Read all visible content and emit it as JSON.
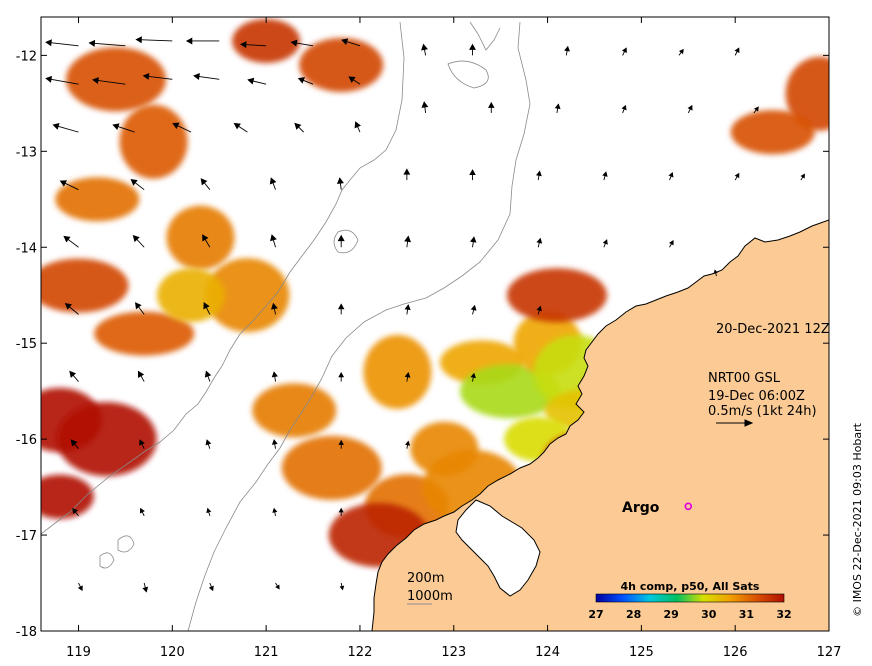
{
  "map": {
    "lon_range": [
      118.6,
      127.0
    ],
    "lat_range": [
      -18.0,
      -11.6
    ],
    "x_ticks": [
      119,
      120,
      121,
      122,
      123,
      124,
      125,
      126,
      127
    ],
    "y_ticks": [
      -12,
      -13,
      -14,
      -15,
      -16,
      -17,
      -18
    ],
    "colors": {
      "land": "#FCCB95",
      "ocean": "#ffffff",
      "bathymetry": "#8a8a8a",
      "coast": "#000000",
      "argo_marker": "#E000E0"
    }
  },
  "annotations": {
    "date_label": "20-Dec-2021 12Z",
    "current_source": "NRT00 GSL",
    "current_time": "19-Dec 06:00Z",
    "scale_label": "0.5m/s (1kt 24h)",
    "argo_label": "Argo",
    "contour_200": "200m",
    "contour_1000": "1000m",
    "credit": "© IMOS 22-Dec-2021 09:03 Hobart"
  },
  "colorbar": {
    "title": "4h comp, p50, All Sats",
    "ticks": [
      "27",
      "28",
      "29",
      "30",
      "31",
      "32"
    ],
    "range": [
      27,
      32
    ],
    "colors": [
      "#0000A0",
      "#0050FF",
      "#00C8E0",
      "#00C060",
      "#D8E000",
      "#F0A000",
      "#D85000",
      "#B01000"
    ]
  },
  "chart_data": {
    "type": "heatmap",
    "title": "",
    "xlabel": "",
    "ylabel": "",
    "xlim": [
      118.6,
      127.0
    ],
    "ylim": [
      -18.0,
      -11.6
    ],
    "value_unit": "°C",
    "argo": {
      "lon": 125.5,
      "lat": -16.7
    },
    "sst_patches": [
      {
        "lon": 121.0,
        "lat": -11.85,
        "value": 31.6
      },
      {
        "lon": 121.8,
        "lat": -12.1,
        "value": 31.4
      },
      {
        "lon": 119.4,
        "lat": -12.25,
        "value": 31.3
      },
      {
        "lon": 119.8,
        "lat": -12.9,
        "value": 31.2
      },
      {
        "lon": 119.2,
        "lat": -13.5,
        "value": 31.0
      },
      {
        "lon": 119.0,
        "lat": -14.4,
        "value": 31.4
      },
      {
        "lon": 120.3,
        "lat": -13.9,
        "value": 30.9
      },
      {
        "lon": 120.8,
        "lat": -14.5,
        "value": 30.8
      },
      {
        "lon": 119.7,
        "lat": -14.9,
        "value": 31.2
      },
      {
        "lon": 120.2,
        "lat": -14.5,
        "value": 30.4
      },
      {
        "lon": 118.8,
        "lat": -15.8,
        "value": 32.0
      },
      {
        "lon": 119.3,
        "lat": -16.0,
        "value": 32.0
      },
      {
        "lon": 118.8,
        "lat": -16.6,
        "value": 32.0
      },
      {
        "lon": 121.3,
        "lat": -15.7,
        "value": 30.9
      },
      {
        "lon": 121.7,
        "lat": -16.3,
        "value": 31.0
      },
      {
        "lon": 122.4,
        "lat": -15.3,
        "value": 30.7
      },
      {
        "lon": 123.3,
        "lat": -15.2,
        "value": 30.5
      },
      {
        "lon": 123.6,
        "lat": -15.5,
        "value": 29.7
      },
      {
        "lon": 124.0,
        "lat": -15.0,
        "value": 30.5
      },
      {
        "lon": 124.3,
        "lat": -15.3,
        "value": 29.8
      },
      {
        "lon": 124.5,
        "lat": -15.7,
        "value": 30.2
      },
      {
        "lon": 122.9,
        "lat": -16.1,
        "value": 30.8
      },
      {
        "lon": 122.5,
        "lat": -16.7,
        "value": 31.0
      },
      {
        "lon": 123.2,
        "lat": -16.5,
        "value": 30.8
      },
      {
        "lon": 123.9,
        "lat": -16.0,
        "value": 29.9
      },
      {
        "lon": 124.4,
        "lat": -16.2,
        "value": 31.3
      },
      {
        "lon": 122.2,
        "lat": -17.0,
        "value": 31.8
      },
      {
        "lon": 126.9,
        "lat": -12.4,
        "value": 31.4
      },
      {
        "lon": 126.4,
        "lat": -12.8,
        "value": 31.3
      },
      {
        "lon": 124.1,
        "lat": -14.5,
        "value": 31.6
      }
    ],
    "current_vectors": [
      {
        "lon": 119.0,
        "lat": -11.9,
        "u": -0.45,
        "v": 0.05
      },
      {
        "lon": 119.5,
        "lat": -11.9,
        "u": -0.5,
        "v": 0.04
      },
      {
        "lon": 120.0,
        "lat": -11.85,
        "u": -0.5,
        "v": 0.02
      },
      {
        "lon": 120.5,
        "lat": -11.85,
        "u": -0.45,
        "v": 0.0
      },
      {
        "lon": 121.0,
        "lat": -11.9,
        "u": -0.35,
        "v": 0.02
      },
      {
        "lon": 121.5,
        "lat": -11.9,
        "u": -0.3,
        "v": 0.05
      },
      {
        "lon": 122.0,
        "lat": -11.9,
        "u": -0.25,
        "v": 0.08
      },
      {
        "lon": 119.0,
        "lat": -12.3,
        "u": -0.45,
        "v": 0.08
      },
      {
        "lon": 119.5,
        "lat": -12.3,
        "u": -0.45,
        "v": 0.06
      },
      {
        "lon": 120.0,
        "lat": -12.25,
        "u": -0.4,
        "v": 0.05
      },
      {
        "lon": 120.5,
        "lat": -12.25,
        "u": -0.35,
        "v": 0.05
      },
      {
        "lon": 121.0,
        "lat": -12.3,
        "u": -0.25,
        "v": 0.06
      },
      {
        "lon": 121.5,
        "lat": -12.3,
        "u": -0.2,
        "v": 0.08
      },
      {
        "lon": 122.0,
        "lat": -12.3,
        "u": -0.15,
        "v": 0.1
      },
      {
        "lon": 122.7,
        "lat": -12.0,
        "u": -0.03,
        "v": 0.15
      },
      {
        "lon": 123.2,
        "lat": -12.0,
        "u": 0.0,
        "v": 0.15
      },
      {
        "lon": 124.2,
        "lat": -12.0,
        "u": 0.02,
        "v": 0.12
      },
      {
        "lon": 124.8,
        "lat": -12.0,
        "u": 0.05,
        "v": 0.1
      },
      {
        "lon": 125.4,
        "lat": -12.0,
        "u": 0.06,
        "v": 0.08
      },
      {
        "lon": 126.0,
        "lat": -12.0,
        "u": 0.05,
        "v": 0.1
      },
      {
        "lon": 119.0,
        "lat": -12.8,
        "u": -0.35,
        "v": 0.1
      },
      {
        "lon": 119.6,
        "lat": -12.8,
        "u": -0.3,
        "v": 0.1
      },
      {
        "lon": 120.2,
        "lat": -12.8,
        "u": -0.25,
        "v": 0.12
      },
      {
        "lon": 120.8,
        "lat": -12.8,
        "u": -0.18,
        "v": 0.12
      },
      {
        "lon": 121.4,
        "lat": -12.8,
        "u": -0.12,
        "v": 0.12
      },
      {
        "lon": 122.0,
        "lat": -12.8,
        "u": -0.06,
        "v": 0.14
      },
      {
        "lon": 122.7,
        "lat": -12.6,
        "u": -0.02,
        "v": 0.15
      },
      {
        "lon": 123.4,
        "lat": -12.6,
        "u": 0.0,
        "v": 0.14
      },
      {
        "lon": 124.1,
        "lat": -12.6,
        "u": 0.02,
        "v": 0.12
      },
      {
        "lon": 124.8,
        "lat": -12.6,
        "u": 0.04,
        "v": 0.1
      },
      {
        "lon": 125.5,
        "lat": -12.6,
        "u": 0.05,
        "v": 0.1
      },
      {
        "lon": 126.2,
        "lat": -12.6,
        "u": 0.06,
        "v": 0.08
      },
      {
        "lon": 119.0,
        "lat": -13.4,
        "u": -0.25,
        "v": 0.12
      },
      {
        "lon": 119.7,
        "lat": -13.4,
        "u": -0.18,
        "v": 0.14
      },
      {
        "lon": 120.4,
        "lat": -13.4,
        "u": -0.12,
        "v": 0.15
      },
      {
        "lon": 121.1,
        "lat": -13.4,
        "u": -0.06,
        "v": 0.16
      },
      {
        "lon": 121.8,
        "lat": -13.4,
        "u": -0.02,
        "v": 0.16
      },
      {
        "lon": 122.5,
        "lat": -13.3,
        "u": 0.0,
        "v": 0.15
      },
      {
        "lon": 123.2,
        "lat": -13.3,
        "u": 0.0,
        "v": 0.14
      },
      {
        "lon": 123.9,
        "lat": -13.3,
        "u": 0.02,
        "v": 0.12
      },
      {
        "lon": 124.6,
        "lat": -13.3,
        "u": 0.03,
        "v": 0.11
      },
      {
        "lon": 125.3,
        "lat": -13.3,
        "u": 0.04,
        "v": 0.1
      },
      {
        "lon": 126.0,
        "lat": -13.3,
        "u": 0.05,
        "v": 0.09
      },
      {
        "lon": 126.7,
        "lat": -13.3,
        "u": 0.05,
        "v": 0.08
      },
      {
        "lon": 119.0,
        "lat": -14.0,
        "u": -0.2,
        "v": 0.15
      },
      {
        "lon": 119.7,
        "lat": -14.0,
        "u": -0.15,
        "v": 0.16
      },
      {
        "lon": 120.4,
        "lat": -14.0,
        "u": -0.1,
        "v": 0.17
      },
      {
        "lon": 121.1,
        "lat": -14.0,
        "u": -0.05,
        "v": 0.17
      },
      {
        "lon": 121.8,
        "lat": -14.0,
        "u": 0.0,
        "v": 0.16
      },
      {
        "lon": 122.5,
        "lat": -14.0,
        "u": 0.02,
        "v": 0.15
      },
      {
        "lon": 123.2,
        "lat": -14.0,
        "u": 0.02,
        "v": 0.14
      },
      {
        "lon": 123.9,
        "lat": -14.0,
        "u": 0.03,
        "v": 0.12
      },
      {
        "lon": 124.6,
        "lat": -14.0,
        "u": 0.04,
        "v": 0.1
      },
      {
        "lon": 125.3,
        "lat": -14.0,
        "u": 0.05,
        "v": 0.09
      },
      {
        "lon": 119.0,
        "lat": -14.7,
        "u": -0.18,
        "v": 0.15
      },
      {
        "lon": 119.7,
        "lat": -14.7,
        "u": -0.12,
        "v": 0.16
      },
      {
        "lon": 120.4,
        "lat": -14.7,
        "u": -0.08,
        "v": 0.16
      },
      {
        "lon": 121.1,
        "lat": -14.7,
        "u": -0.03,
        "v": 0.15
      },
      {
        "lon": 121.8,
        "lat": -14.7,
        "u": 0.0,
        "v": 0.14
      },
      {
        "lon": 122.5,
        "lat": -14.7,
        "u": 0.02,
        "v": 0.13
      },
      {
        "lon": 123.2,
        "lat": -14.7,
        "u": 0.03,
        "v": 0.12
      },
      {
        "lon": 123.9,
        "lat": -14.7,
        "u": 0.03,
        "v": 0.11
      },
      {
        "lon": 119.0,
        "lat": -15.4,
        "u": -0.12,
        "v": 0.14
      },
      {
        "lon": 119.7,
        "lat": -15.4,
        "u": -0.08,
        "v": 0.14
      },
      {
        "lon": 120.4,
        "lat": -15.4,
        "u": -0.05,
        "v": 0.14
      },
      {
        "lon": 121.1,
        "lat": -15.4,
        "u": -0.02,
        "v": 0.13
      },
      {
        "lon": 121.8,
        "lat": -15.4,
        "u": 0.0,
        "v": 0.12
      },
      {
        "lon": 122.5,
        "lat": -15.4,
        "u": 0.02,
        "v": 0.12
      },
      {
        "lon": 123.2,
        "lat": -15.4,
        "u": 0.02,
        "v": 0.11
      },
      {
        "lon": 119.0,
        "lat": -16.1,
        "u": -0.1,
        "v": 0.12
      },
      {
        "lon": 119.7,
        "lat": -16.1,
        "u": -0.06,
        "v": 0.12
      },
      {
        "lon": 120.4,
        "lat": -16.1,
        "u": -0.04,
        "v": 0.12
      },
      {
        "lon": 121.1,
        "lat": -16.1,
        "u": -0.02,
        "v": 0.12
      },
      {
        "lon": 121.8,
        "lat": -16.1,
        "u": 0.0,
        "v": 0.11
      },
      {
        "lon": 122.5,
        "lat": -16.1,
        "u": 0.02,
        "v": 0.1
      },
      {
        "lon": 119.0,
        "lat": -16.8,
        "u": -0.08,
        "v": 0.1
      },
      {
        "lon": 119.7,
        "lat": -16.8,
        "u": -0.05,
        "v": 0.1
      },
      {
        "lon": 120.4,
        "lat": -16.8,
        "u": -0.03,
        "v": 0.1
      },
      {
        "lon": 121.1,
        "lat": -16.8,
        "u": -0.02,
        "v": 0.1
      },
      {
        "lon": 121.8,
        "lat": -16.8,
        "u": 0.0,
        "v": 0.1
      },
      {
        "lon": 119.0,
        "lat": -17.5,
        "u": 0.05,
        "v": -0.1
      },
      {
        "lon": 119.7,
        "lat": -17.5,
        "u": 0.03,
        "v": -0.12
      },
      {
        "lon": 120.4,
        "lat": -17.5,
        "u": 0.04,
        "v": -0.1
      },
      {
        "lon": 121.1,
        "lat": -17.5,
        "u": 0.05,
        "v": -0.08
      },
      {
        "lon": 121.8,
        "lat": -17.5,
        "u": 0.02,
        "v": -0.09
      },
      {
        "lon": 125.8,
        "lat": -14.3,
        "u": -0.02,
        "v": 0.08
      }
    ]
  }
}
